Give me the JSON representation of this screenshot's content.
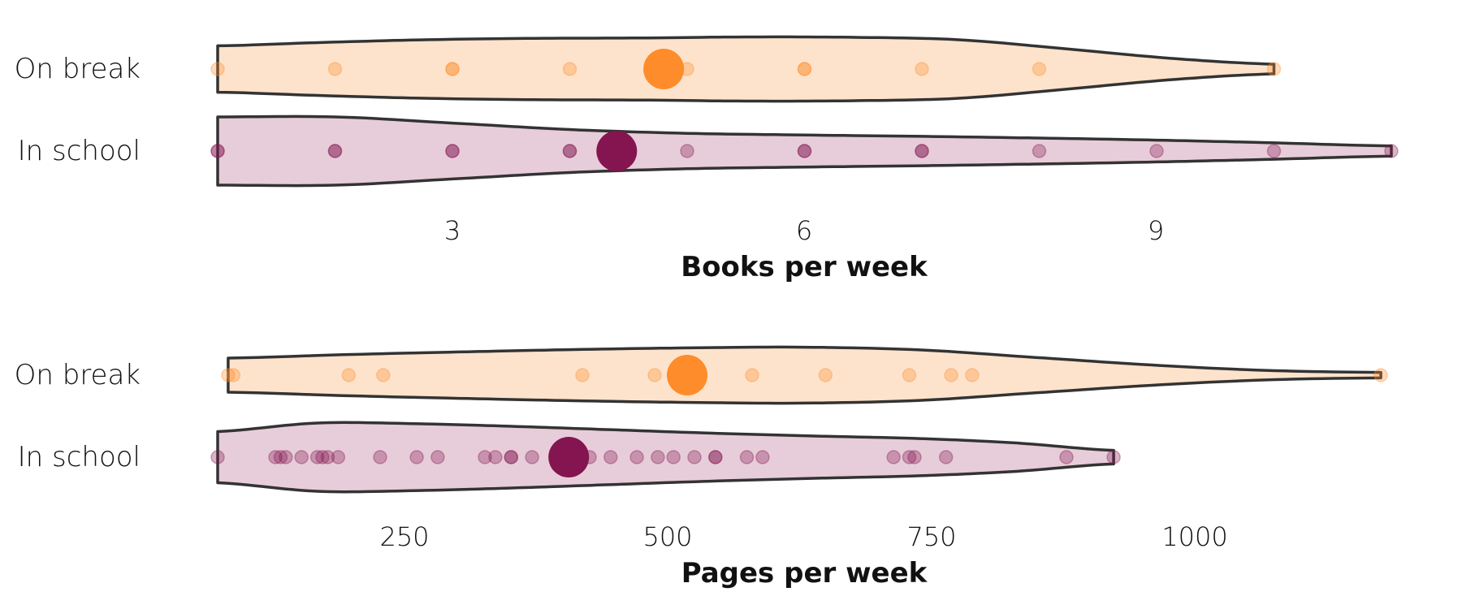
{
  "colors": {
    "on_break_fill": "#fde3cc",
    "on_break_point": "#ff8c2a",
    "in_school_fill": "#e7cdd9",
    "in_school_point": "#841550",
    "outline": "#333333"
  },
  "chart_data": [
    {
      "type": "violin",
      "title": "",
      "xlabel": "Books per week",
      "xlim": [
        1,
        11
      ],
      "ticks": [
        3,
        6,
        9
      ],
      "tick_labels": [
        "3",
        "6",
        "9"
      ],
      "grid": false,
      "legend": "none",
      "groups": [
        {
          "label": "On break",
          "color_key": "on_break",
          "range": [
            1,
            10
          ],
          "density": [
            0.68,
            0.78,
            0.86,
            0.9,
            0.91,
            0.94,
            0.93,
            0.86,
            0.6,
            0.32,
            0.14
          ],
          "points": [
            1,
            2,
            3,
            3,
            4,
            5,
            6,
            6,
            7,
            8,
            10
          ],
          "mean": 4.8
        },
        {
          "label": "In school",
          "color_key": "in_school",
          "range": [
            1,
            11
          ],
          "density": [
            1.0,
            1.0,
            0.82,
            0.63,
            0.52,
            0.47,
            0.43,
            0.38,
            0.32,
            0.24,
            0.15
          ],
          "points": [
            1,
            1,
            2,
            2,
            3,
            3,
            4,
            4,
            5,
            6,
            6,
            7,
            7,
            8,
            9,
            10,
            11
          ],
          "mean": 4.4
        }
      ]
    },
    {
      "type": "violin",
      "title": "",
      "xlabel": "Pages per week",
      "xlim": [
        0,
        1120
      ],
      "ticks": [
        250,
        500,
        750,
        1000
      ],
      "tick_labels": [
        "250",
        "500",
        "750",
        "1000"
      ],
      "grid": false,
      "legend": "none",
      "groups": [
        {
          "label": "On break",
          "color_key": "on_break",
          "range": [
            10,
            1110
          ],
          "density": [
            0.5,
            0.6,
            0.68,
            0.75,
            0.8,
            0.82,
            0.74,
            0.52,
            0.3,
            0.14,
            0.08
          ],
          "points": [
            10,
            15,
            125,
            158,
            348,
            417,
            440,
            510,
            580,
            660,
            700,
            720,
            1110
          ],
          "mean": 448
        },
        {
          "label": "In school",
          "color_key": "in_school",
          "range": [
            0,
            855
          ],
          "density": [
            0.75,
            1.0,
            0.98,
            0.9,
            0.8,
            0.7,
            0.62,
            0.55,
            0.42,
            0.2
          ],
          "points": [
            0,
            55,
            60,
            65,
            80,
            95,
            100,
            105,
            115,
            155,
            190,
            210,
            255,
            265,
            280,
            280,
            300,
            345,
            355,
            375,
            400,
            420,
            435,
            455,
            475,
            475,
            505,
            520,
            645,
            660,
            665,
            695,
            810,
            855
          ],
          "mean": 335
        }
      ]
    }
  ]
}
